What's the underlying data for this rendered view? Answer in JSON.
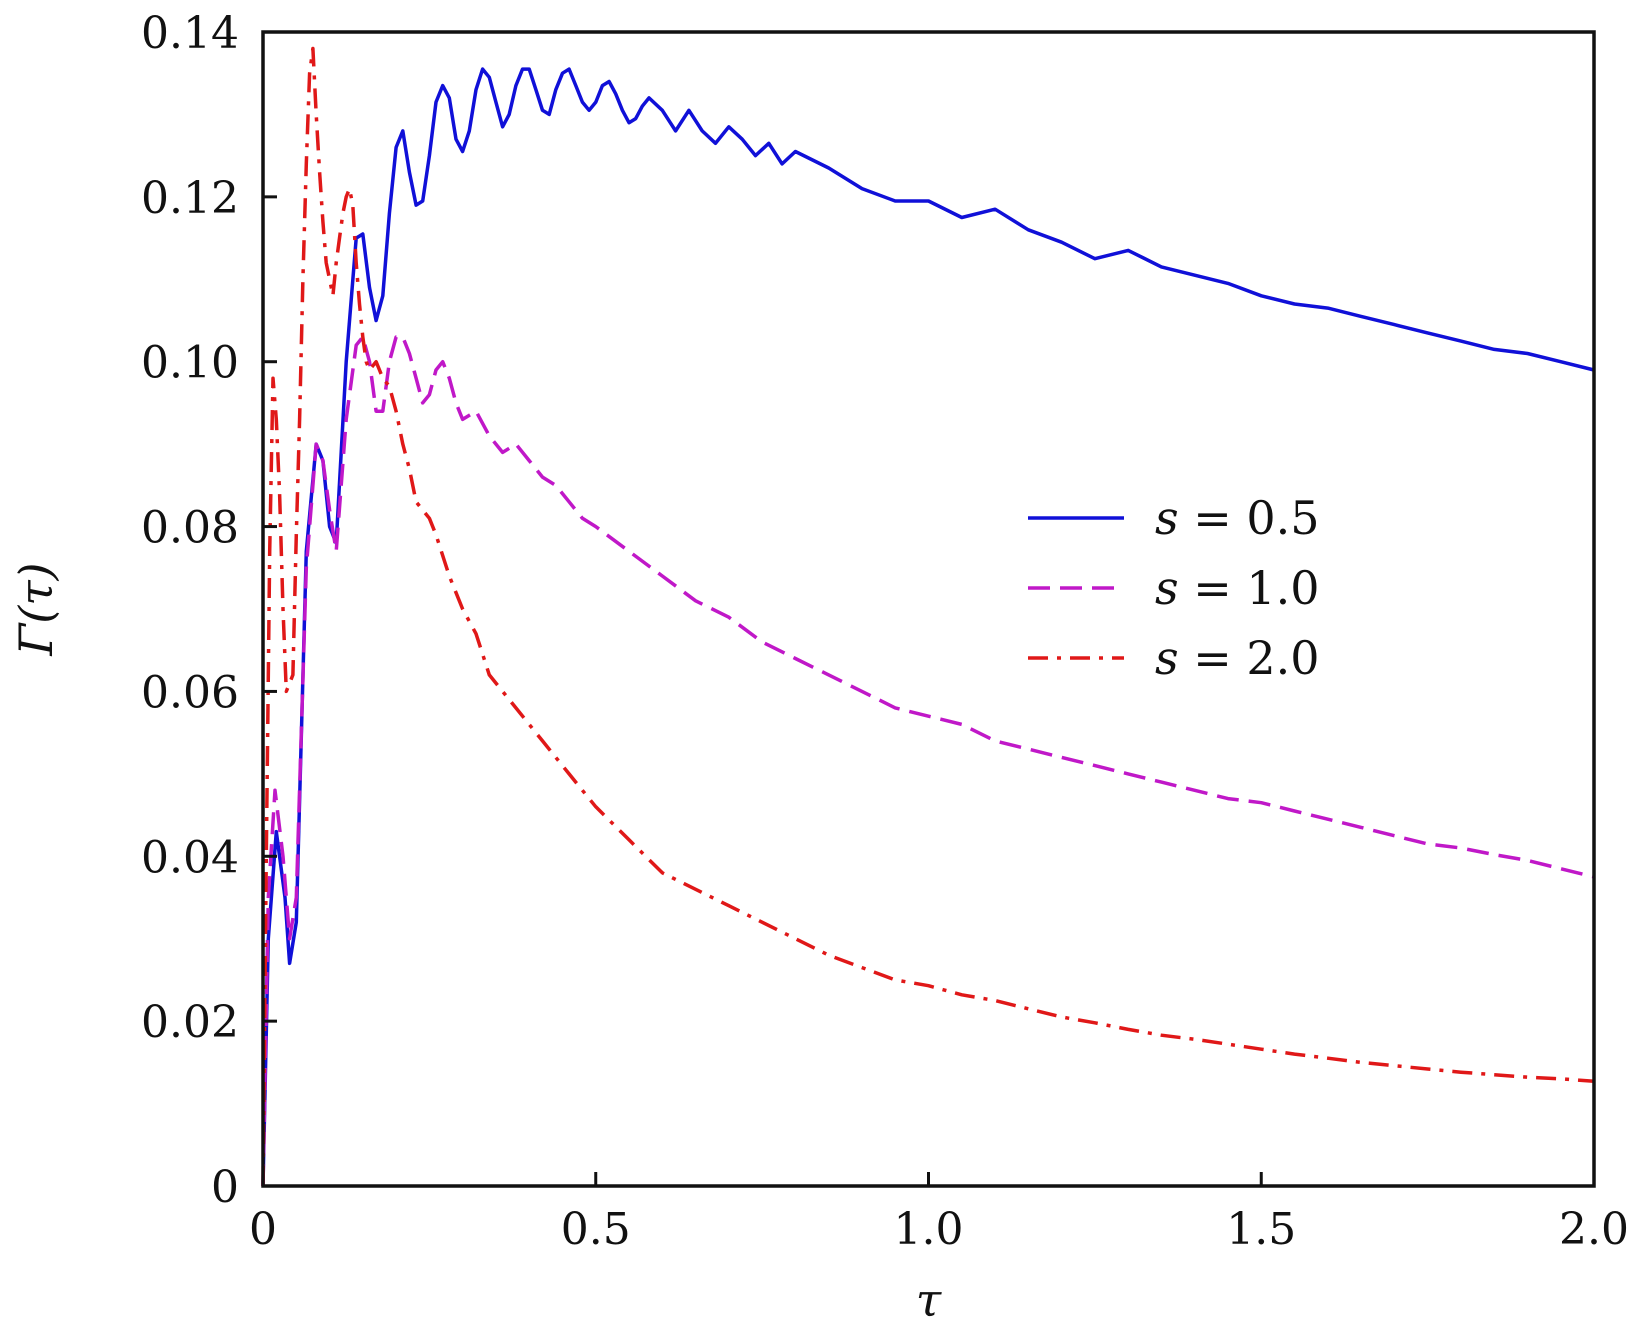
{
  "chart_data": {
    "type": "line",
    "xlabel": "τ",
    "ylabel": "Γ(τ)",
    "xlim": [
      0,
      2.0
    ],
    "ylim": [
      0,
      0.14
    ],
    "grid": false,
    "legend_position": "center-right",
    "x_ticks": [
      {
        "value": 0,
        "label": "0"
      },
      {
        "value": 0.5,
        "label": "0.5"
      },
      {
        "value": 1.0,
        "label": "1.0"
      },
      {
        "value": 1.5,
        "label": "1.5"
      },
      {
        "value": 2.0,
        "label": "2.0"
      }
    ],
    "y_ticks": [
      {
        "value": 0,
        "label": "0"
      },
      {
        "value": 0.02,
        "label": "0.02"
      },
      {
        "value": 0.04,
        "label": "0.04"
      },
      {
        "value": 0.06,
        "label": "0.06"
      },
      {
        "value": 0.08,
        "label": "0.08"
      },
      {
        "value": 0.1,
        "label": "0.10"
      },
      {
        "value": 0.12,
        "label": "0.12"
      },
      {
        "value": 0.14,
        "label": "0.14"
      }
    ],
    "series": [
      {
        "name": "s = 0.5",
        "legend_var": "s",
        "legend_value": "0.5",
        "color": "#1010d8",
        "dash": "solid",
        "x": [
          0,
          0.008,
          0.02,
          0.033,
          0.04,
          0.05,
          0.065,
          0.08,
          0.09,
          0.1,
          0.11,
          0.125,
          0.14,
          0.15,
          0.16,
          0.17,
          0.18,
          0.19,
          0.2,
          0.21,
          0.22,
          0.23,
          0.24,
          0.25,
          0.26,
          0.27,
          0.28,
          0.29,
          0.3,
          0.31,
          0.32,
          0.33,
          0.34,
          0.35,
          0.36,
          0.37,
          0.38,
          0.39,
          0.4,
          0.41,
          0.42,
          0.43,
          0.44,
          0.45,
          0.46,
          0.47,
          0.48,
          0.49,
          0.5,
          0.51,
          0.52,
          0.53,
          0.54,
          0.55,
          0.56,
          0.57,
          0.58,
          0.6,
          0.62,
          0.64,
          0.66,
          0.68,
          0.7,
          0.72,
          0.74,
          0.76,
          0.78,
          0.8,
          0.85,
          0.9,
          0.95,
          1.0,
          1.05,
          1.1,
          1.15,
          1.2,
          1.25,
          1.3,
          1.35,
          1.4,
          1.45,
          1.5,
          1.55,
          1.6,
          1.65,
          1.7,
          1.75,
          1.8,
          1.85,
          1.9,
          1.95,
          2.0
        ],
        "y": [
          0,
          0.03,
          0.043,
          0.035,
          0.027,
          0.032,
          0.077,
          0.09,
          0.088,
          0.08,
          0.078,
          0.1,
          0.115,
          0.1155,
          0.109,
          0.105,
          0.108,
          0.118,
          0.126,
          0.128,
          0.123,
          0.119,
          0.1195,
          0.125,
          0.1315,
          0.1335,
          0.132,
          0.127,
          0.1255,
          0.128,
          0.133,
          0.1355,
          0.1345,
          0.1315,
          0.1285,
          0.13,
          0.1335,
          0.1355,
          0.1355,
          0.133,
          0.1305,
          0.13,
          0.133,
          0.135,
          0.1355,
          0.1335,
          0.1315,
          0.1305,
          0.1315,
          0.1335,
          0.134,
          0.1325,
          0.1305,
          0.129,
          0.1295,
          0.131,
          0.132,
          0.1305,
          0.128,
          0.1305,
          0.128,
          0.1265,
          0.1285,
          0.127,
          0.125,
          0.1265,
          0.124,
          0.1255,
          0.1235,
          0.121,
          0.1195,
          0.1195,
          0.1175,
          0.1185,
          0.116,
          0.1145,
          0.1125,
          0.1135,
          0.1115,
          0.1105,
          0.1095,
          0.108,
          0.107,
          0.1065,
          0.1055,
          0.1045,
          0.1035,
          0.1025,
          0.1015,
          0.101,
          0.1,
          0.099
        ]
      },
      {
        "name": "s = 1.0",
        "legend_var": "s",
        "legend_value": "1.0",
        "color": "#c018c8",
        "dash": "dashed",
        "x": [
          0,
          0.008,
          0.018,
          0.03,
          0.04,
          0.05,
          0.065,
          0.08,
          0.09,
          0.1,
          0.11,
          0.125,
          0.14,
          0.15,
          0.16,
          0.17,
          0.18,
          0.19,
          0.2,
          0.21,
          0.22,
          0.23,
          0.24,
          0.25,
          0.26,
          0.27,
          0.28,
          0.29,
          0.3,
          0.32,
          0.34,
          0.36,
          0.38,
          0.4,
          0.42,
          0.44,
          0.46,
          0.48,
          0.5,
          0.55,
          0.6,
          0.65,
          0.7,
          0.75,
          0.8,
          0.85,
          0.9,
          0.95,
          1.0,
          1.05,
          1.1,
          1.15,
          1.2,
          1.25,
          1.3,
          1.35,
          1.4,
          1.45,
          1.5,
          1.55,
          1.6,
          1.65,
          1.7,
          1.75,
          1.8,
          1.85,
          1.9,
          1.95,
          2.0
        ],
        "y": [
          0,
          0.035,
          0.048,
          0.04,
          0.03,
          0.035,
          0.075,
          0.09,
          0.088,
          0.082,
          0.077,
          0.093,
          0.102,
          0.103,
          0.1,
          0.094,
          0.094,
          0.1,
          0.103,
          0.103,
          0.101,
          0.098,
          0.095,
          0.096,
          0.099,
          0.1,
          0.098,
          0.095,
          0.093,
          0.094,
          0.091,
          0.089,
          0.09,
          0.088,
          0.086,
          0.085,
          0.083,
          0.081,
          0.08,
          0.077,
          0.074,
          0.071,
          0.069,
          0.066,
          0.064,
          0.062,
          0.06,
          0.058,
          0.057,
          0.056,
          0.054,
          0.053,
          0.052,
          0.051,
          0.05,
          0.049,
          0.048,
          0.047,
          0.0465,
          0.0455,
          0.0445,
          0.0435,
          0.0425,
          0.0415,
          0.041,
          0.0402,
          0.0395,
          0.0385,
          0.0375
        ]
      },
      {
        "name": "s = 2.0",
        "legend_var": "s",
        "legend_value": "2.0",
        "color": "#e01818",
        "dash": "dashdot",
        "x": [
          0,
          0.005,
          0.01,
          0.015,
          0.02,
          0.025,
          0.03,
          0.035,
          0.04,
          0.045,
          0.05,
          0.055,
          0.06,
          0.065,
          0.07,
          0.075,
          0.08,
          0.085,
          0.09,
          0.095,
          0.1,
          0.105,
          0.11,
          0.115,
          0.12,
          0.125,
          0.13,
          0.135,
          0.14,
          0.145,
          0.15,
          0.155,
          0.16,
          0.165,
          0.17,
          0.175,
          0.18,
          0.19,
          0.2,
          0.21,
          0.22,
          0.23,
          0.24,
          0.25,
          0.26,
          0.28,
          0.3,
          0.32,
          0.34,
          0.36,
          0.38,
          0.4,
          0.42,
          0.44,
          0.46,
          0.48,
          0.5,
          0.55,
          0.6,
          0.65,
          0.7,
          0.75,
          0.8,
          0.85,
          0.9,
          0.95,
          1.0,
          1.05,
          1.1,
          1.15,
          1.2,
          1.25,
          1.3,
          1.35,
          1.4,
          1.45,
          1.5,
          1.55,
          1.6,
          1.65,
          1.7,
          1.75,
          1.8,
          1.85,
          1.9,
          1.95,
          2.0
        ],
        "y": [
          0,
          0.04,
          0.077,
          0.098,
          0.093,
          0.084,
          0.07,
          0.06,
          0.061,
          0.062,
          0.079,
          0.093,
          0.11,
          0.124,
          0.135,
          0.138,
          0.13,
          0.123,
          0.117,
          0.112,
          0.11,
          0.108,
          0.112,
          0.115,
          0.118,
          0.12,
          0.121,
          0.119,
          0.112,
          0.107,
          0.103,
          0.1,
          0.099,
          0.0995,
          0.1,
          0.099,
          0.098,
          0.097,
          0.094,
          0.09,
          0.087,
          0.083,
          0.082,
          0.081,
          0.079,
          0.074,
          0.07,
          0.067,
          0.062,
          0.06,
          0.058,
          0.056,
          0.054,
          0.052,
          0.05,
          0.048,
          0.046,
          0.042,
          0.038,
          0.036,
          0.034,
          0.032,
          0.03,
          0.028,
          0.0265,
          0.025,
          0.0243,
          0.0232,
          0.0225,
          0.0215,
          0.0205,
          0.0198,
          0.019,
          0.0183,
          0.0178,
          0.0172,
          0.0166,
          0.016,
          0.0155,
          0.015,
          0.0146,
          0.0142,
          0.0138,
          0.0135,
          0.0132,
          0.013,
          0.0127
        ]
      }
    ]
  }
}
